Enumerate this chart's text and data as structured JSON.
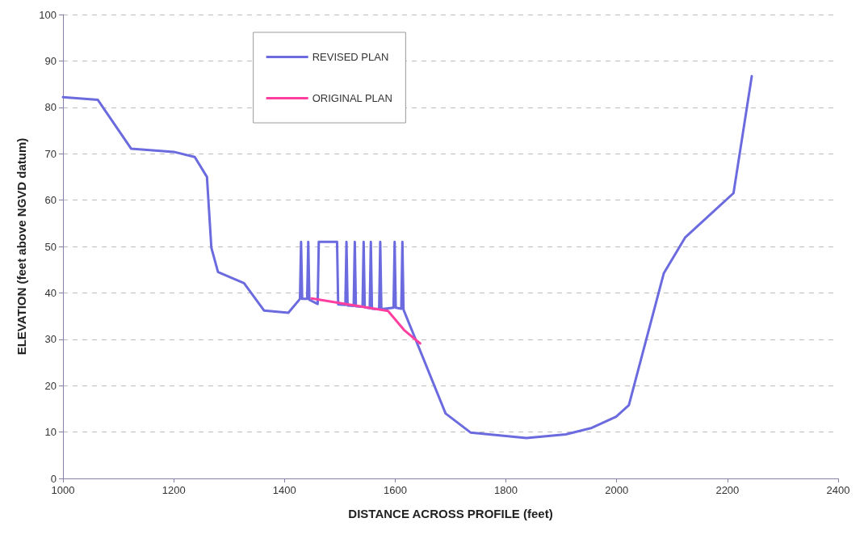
{
  "chart_data": {
    "type": "line",
    "xlabel": "DISTANCE ACROSS PROFILE (feet)",
    "ylabel": "ELEVATION (feet above NGVD datum)",
    "xlim": [
      1000,
      2400
    ],
    "xticks": [
      1000,
      1200,
      1400,
      1600,
      1800,
      2000,
      2200,
      2400
    ],
    "ylim": [
      0,
      100
    ],
    "yticks": [
      0,
      10,
      20,
      30,
      40,
      50,
      60,
      70,
      80,
      90,
      100
    ],
    "grid": "y",
    "legend": "top",
    "marker": "none",
    "line_style": "solid",
    "series": [
      {
        "name": "REVISED PLAN",
        "color": "#6b6bdf",
        "x": [
          1000,
          1063,
          1123,
          1200,
          1238,
          1260,
          1268,
          1280,
          1327,
          1363,
          1407,
          1428,
          1430,
          1432,
          1441,
          1443,
          1445,
          1460,
          1462,
          1495,
          1497,
          1510,
          1512,
          1514,
          1525,
          1527,
          1529,
          1541,
          1543,
          1545,
          1554,
          1556,
          1558,
          1571,
          1573,
          1575,
          1597,
          1599,
          1601,
          1611,
          1613,
          1615,
          1691,
          1736,
          1837,
          1908,
          1955,
          1999,
          2022,
          2085,
          2124,
          2211,
          2244
        ],
        "values": [
          82.2,
          81.6,
          71.1,
          70.4,
          69.3,
          65,
          49.7,
          44.5,
          42.1,
          36.2,
          35.7,
          38.7,
          51,
          38.7,
          38.7,
          51,
          38.5,
          37.6,
          51,
          51,
          37.5,
          37.4,
          51,
          37.3,
          37.2,
          51,
          37.1,
          37,
          51,
          36.9,
          36.7,
          51,
          36.6,
          36.5,
          51,
          36.5,
          36.8,
          51,
          36.8,
          36.6,
          51,
          36.4,
          14,
          9.9,
          8.7,
          9.5,
          10.9,
          13.3,
          15.8,
          44.2,
          52,
          61.5,
          86.7
        ]
      },
      {
        "name": "ORIGINAL PLAN",
        "color": "#ff3fa0",
        "x": [
          1449,
          1587,
          1616,
          1645
        ],
        "values": [
          38.8,
          36.1,
          32,
          29.1
        ]
      }
    ]
  }
}
